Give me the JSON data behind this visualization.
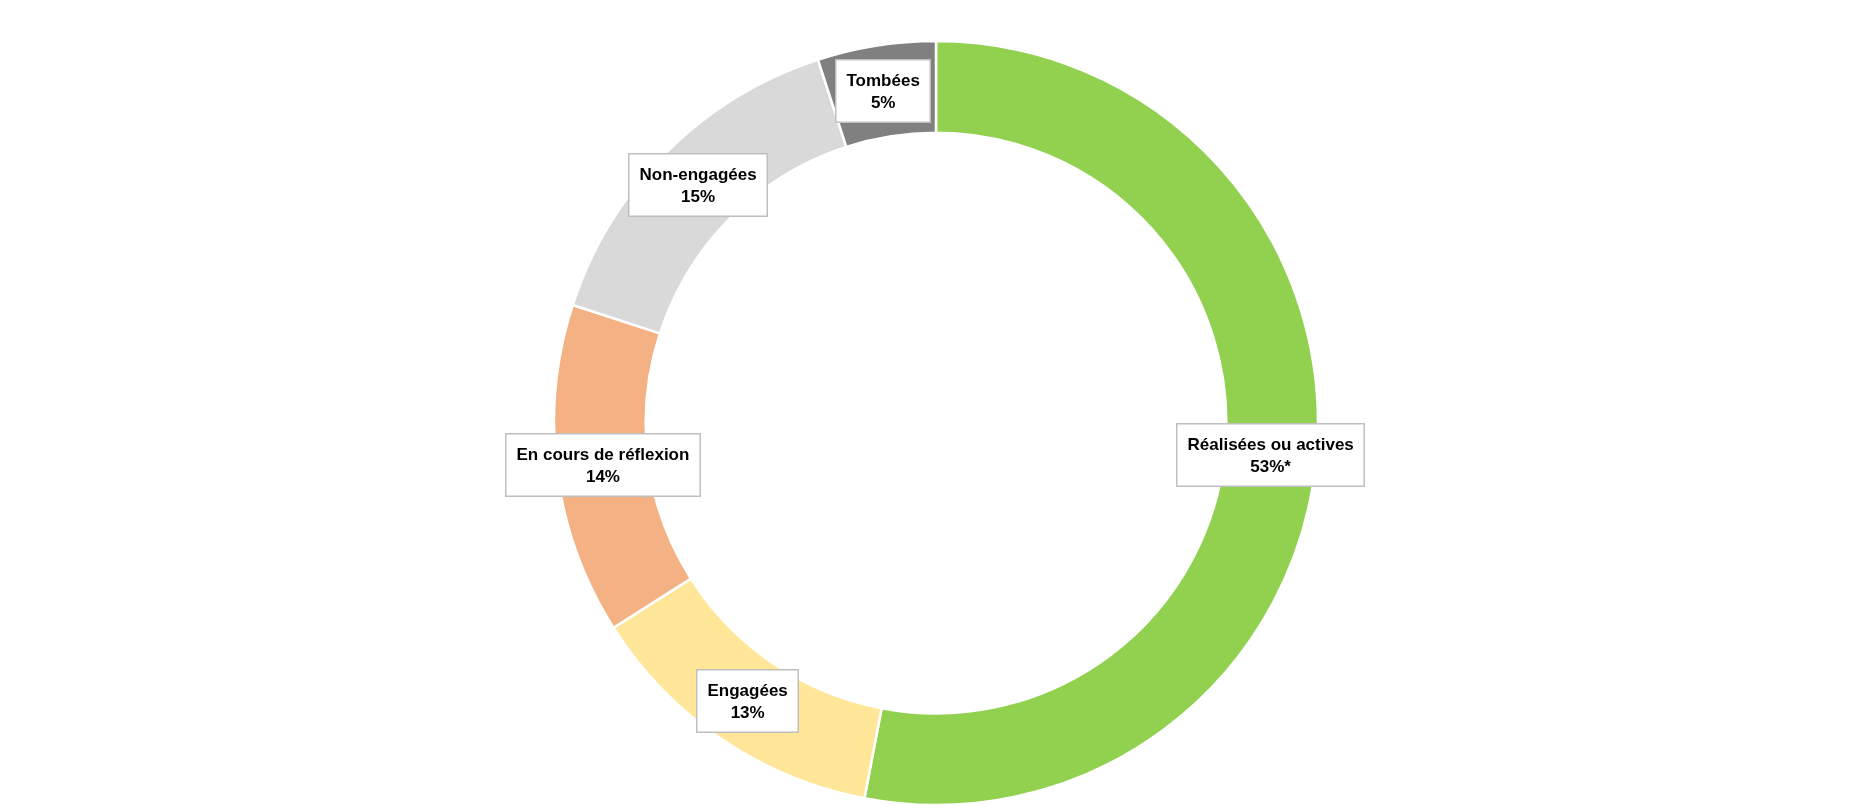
{
  "chart_data": {
    "type": "donut",
    "categories": [
      "Réalisées ou actives",
      "Engagées",
      "En cours de réflexion",
      "Non-engagées",
      "Tombées"
    ],
    "values": [
      53,
      13,
      14,
      15,
      5
    ],
    "colors": [
      "#92d050",
      "#ffe699",
      "#f4b183",
      "#d9d9d9",
      "#808080"
    ],
    "value_labels": [
      "53%*",
      "13%",
      "14%",
      "15%",
      "5%"
    ],
    "legend": false
  }
}
